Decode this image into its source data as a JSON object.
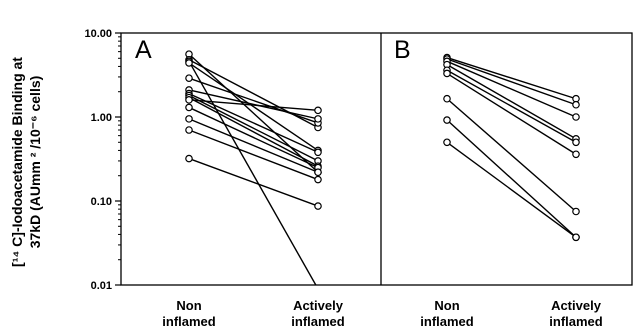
{
  "chart_data": {
    "type": "line",
    "ylabel_line1": "[¹⁴ C]-Iodoacetamide Binding at",
    "ylabel_line2": "37kD (AUmm ² /10⁻⁶ cells)",
    "ylim": [
      0.01,
      10
    ],
    "y_scale": "log",
    "y_ticks": [
      "10.00",
      "1.00",
      "0.10",
      "0.01"
    ],
    "y_tick_values": [
      10,
      1,
      0.1,
      0.01
    ],
    "grid": false,
    "categories": [
      {
        "line1": "Non",
        "line2": "inflamed"
      },
      {
        "line1": "Actively",
        "line2": "inflamed"
      }
    ],
    "panels": [
      {
        "label": "A",
        "pairs": [
          [
            5.6,
            0.22
          ],
          [
            4.8,
            0.75
          ],
          [
            4.6,
            0.009
          ],
          [
            4.4,
            0.4
          ],
          [
            2.9,
            0.85
          ],
          [
            2.1,
            0.95
          ],
          [
            1.9,
            0.38
          ],
          [
            1.8,
            0.3
          ],
          [
            1.7,
            0.26
          ],
          [
            1.6,
            1.2
          ],
          [
            1.3,
            0.25
          ],
          [
            0.95,
            0.22
          ],
          [
            0.7,
            0.18
          ],
          [
            0.32,
            0.087
          ]
        ]
      },
      {
        "label": "B",
        "pairs": [
          [
            5.1,
            1.65
          ],
          [
            4.9,
            1.4
          ],
          [
            4.6,
            1.0
          ],
          [
            4.2,
            0.55
          ],
          [
            3.6,
            0.5
          ],
          [
            3.3,
            0.36
          ],
          [
            1.65,
            0.075
          ],
          [
            0.92,
            0.037
          ],
          [
            0.5,
            0.037
          ]
        ]
      }
    ]
  }
}
